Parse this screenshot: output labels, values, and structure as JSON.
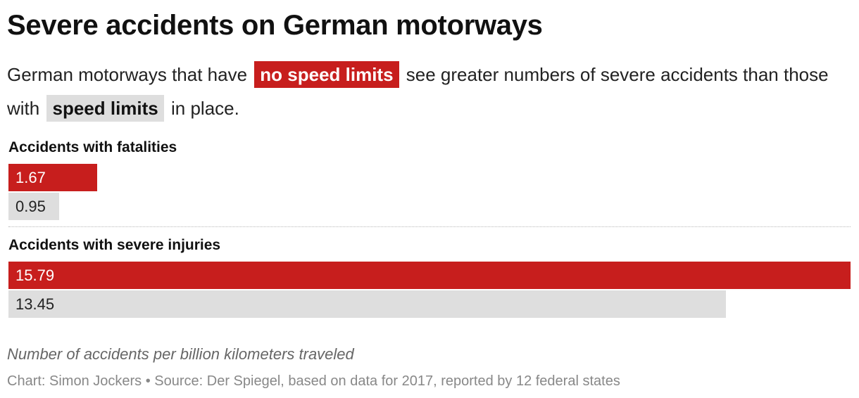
{
  "title": "Severe accidents on German motorways",
  "description": {
    "part1": "German motorways that have",
    "highlight1": "no speed limits",
    "part2": "see greater numbers of severe accidents than those with",
    "highlight2": "speed limits",
    "part3": "in place."
  },
  "colors": {
    "no_speed_limits": "#c71e1d",
    "speed_limits": "#dedede"
  },
  "chart_data": {
    "type": "bar",
    "orientation": "horizontal",
    "categories": [
      "Accidents with fatalities",
      "Accidents with severe injuries"
    ],
    "series": [
      {
        "name": "no speed limits",
        "values": [
          1.67,
          15.79
        ]
      },
      {
        "name": "speed limits",
        "values": [
          0.95,
          13.45
        ]
      }
    ],
    "xlim": [
      0,
      15.79
    ],
    "value_labels": {
      "fatalities": [
        "1.67",
        "0.95"
      ],
      "severe_injuries": [
        "15.79",
        "13.45"
      ]
    },
    "grid": false
  },
  "footer": {
    "note": "Number of accidents per billion kilometers traveled",
    "source": "Chart: Simon Jockers • Source: Der Spiegel, based on data for 2017, reported by 12 federal states"
  }
}
